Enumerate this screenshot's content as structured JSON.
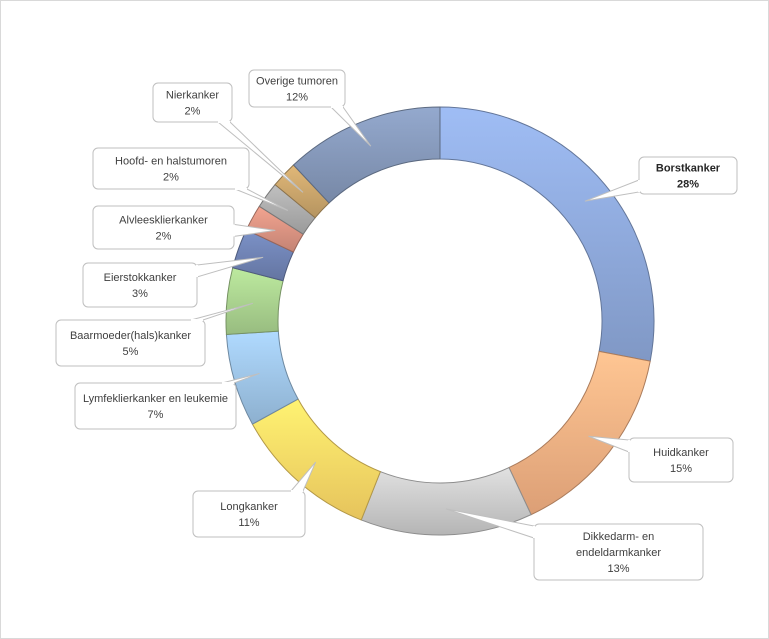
{
  "chart_data": {
    "type": "pie",
    "variant": "doughnut",
    "title": "",
    "slices": [
      {
        "label": "Borstkanker",
        "value": 28,
        "percent_label": "28%",
        "color": "#8EA9DB"
      },
      {
        "label": "Huidkanker",
        "value": 15,
        "percent_label": "15%",
        "color": "#F4B183"
      },
      {
        "label": "Dikkedarm- en endeldarmkanker",
        "label_lines": [
          "Dikkedarm- en",
          "endeldarmkanker"
        ],
        "value": 13,
        "percent_label": "13%",
        "color": "#C9C9C9"
      },
      {
        "label": "Longkanker",
        "value": 11,
        "percent_label": "11%",
        "color": "#FFD966"
      },
      {
        "label": "Lymfeklierkanker en leukemie",
        "value": 7,
        "percent_label": "7%",
        "color": "#9DC3E6"
      },
      {
        "label": "Baarmoeder(hals)kanker",
        "value": 5,
        "percent_label": "5%",
        "color": "#A9D18E"
      },
      {
        "label": "Eierstokkanker",
        "value": 3,
        "percent_label": "3%",
        "color": "#6F82B3"
      },
      {
        "label": "Alvleesklierkanker",
        "value": 2,
        "percent_label": "2%",
        "color": "#D99281"
      },
      {
        "label": "Hoofd- en halstumoren",
        "value": 2,
        "percent_label": "2%",
        "color": "#ABABAB"
      },
      {
        "label": "Nierkanker",
        "value": 2,
        "percent_label": "2%",
        "color": "#C9A46B"
      },
      {
        "label": "Overige tumoren",
        "value": 12,
        "percent_label": "12%",
        "color": "#8497B8"
      }
    ],
    "legend": "none"
  }
}
